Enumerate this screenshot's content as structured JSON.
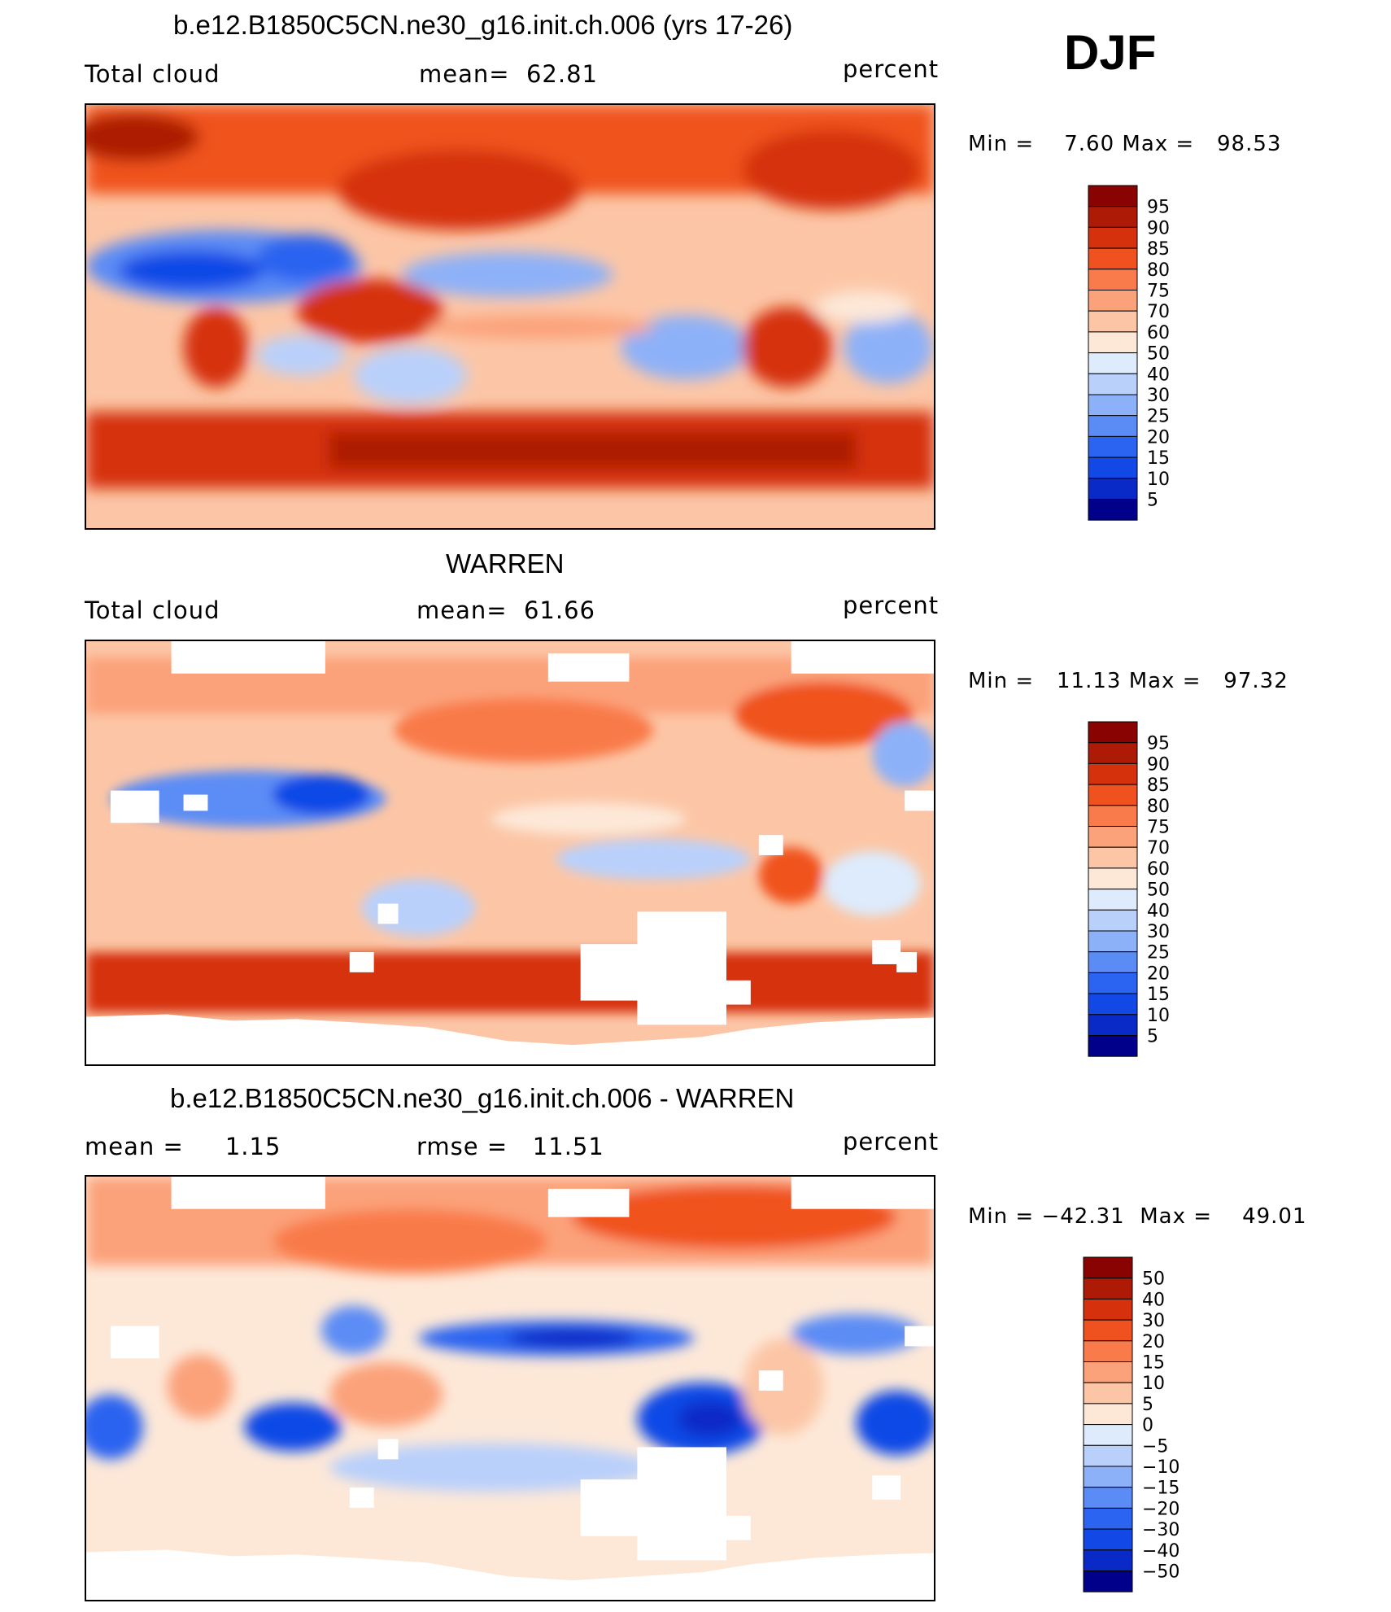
{
  "figure": {
    "season": "DJF",
    "colors": {
      "abs_scale": [
        "#00008b",
        "#0a2ac8",
        "#1148e6",
        "#2a64f0",
        "#5b8cf5",
        "#8db1f8",
        "#b9d0fb",
        "#ddebfc",
        "#fde8d8",
        "#fcc6a6",
        "#fba27a",
        "#f97a4a",
        "#f0521f",
        "#d5310c",
        "#ad1a06",
        "#8a0303"
      ],
      "diff_scale": [
        "#00008b",
        "#0a2ac8",
        "#1148e6",
        "#2a64f0",
        "#5b8cf5",
        "#8db1f8",
        "#b9d0fb",
        "#ddebfc",
        "#fde8d8",
        "#fcc6a6",
        "#fba27a",
        "#f97a4a",
        "#f0521f",
        "#d5310c",
        "#ad1a06",
        "#8a0303"
      ]
    }
  },
  "chart_data": [
    {
      "type": "heatmap",
      "title": "b.e12.B1850C5CN.ne30_g16.init.ch.006 (yrs 17-26)",
      "variable": "Total cloud",
      "mean_label": "mean=",
      "mean_value": "62.81",
      "units": "percent",
      "min_label": "Min =",
      "min_value": "7.60",
      "max_label": "Max =",
      "max_value": "98.53",
      "colorbar_levels": [
        "95",
        "90",
        "85",
        "80",
        "75",
        "70",
        "60",
        "50",
        "40",
        "30",
        "25",
        "20",
        "15",
        "10",
        "5"
      ]
    },
    {
      "type": "heatmap",
      "title": "WARREN",
      "variable": "Total cloud",
      "mean_label": "mean=",
      "mean_value": "61.66",
      "units": "percent",
      "min_label": "Min =",
      "min_value": "11.13",
      "max_label": "Max =",
      "max_value": "97.32",
      "colorbar_levels": [
        "95",
        "90",
        "85",
        "80",
        "75",
        "70",
        "60",
        "50",
        "40",
        "30",
        "25",
        "20",
        "15",
        "10",
        "5"
      ]
    },
    {
      "type": "heatmap",
      "title": "b.e12.B1850C5CN.ne30_g16.init.ch.006 - WARREN",
      "mean_label": "mean =",
      "mean_value": "1.15",
      "rmse_label": "rmse =",
      "rmse_value": "11.51",
      "units": "percent",
      "min_label": "Min =",
      "min_value": "−42.31",
      "max_label": "Max =",
      "max_value": "49.01",
      "colorbar_levels": [
        "50",
        "40",
        "30",
        "20",
        "15",
        "10",
        "5",
        "0",
        "−5",
        "−10",
        "−15",
        "−20",
        "−30",
        "−40",
        "−50"
      ]
    }
  ]
}
